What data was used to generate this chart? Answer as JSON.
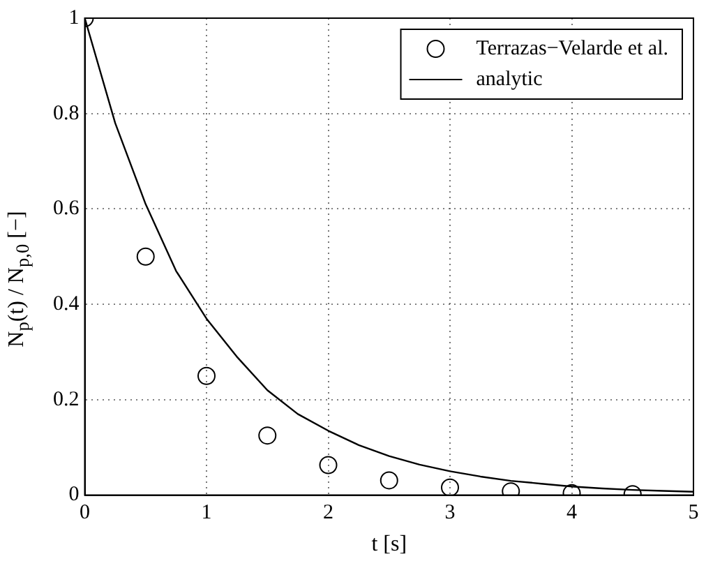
{
  "chart_data": {
    "type": "scatter",
    "xlabel": "t [s]",
    "ylabel": "N$_{p}$(t) / N$_{p,0}$ [−]",
    "xlim": [
      0,
      5
    ],
    "xticks": [
      0,
      1,
      2,
      3,
      4,
      5
    ],
    "ylim": [
      0,
      1
    ],
    "yticks": [
      0,
      0.2,
      0.4,
      0.6,
      0.8,
      1
    ],
    "grid": true,
    "legend": "top right",
    "marker": "circle",
    "series": [
      {
        "name": "Terrazas−Velarde et al.",
        "color": "#000000",
        "x": [
          0,
          0.5,
          1,
          1.5,
          2,
          2.5,
          3,
          3.5,
          4,
          4.5
        ],
        "values": [
          1,
          0.5,
          0.25,
          0.125,
          0.063,
          0.031,
          0.016,
          0.008,
          0.004,
          0.002
        ]
      },
      {
        "name": "analytic",
        "type": "line",
        "color": "#000000",
        "marker": "none",
        "line_style": "solid",
        "x": [
          0,
          0.25,
          0.5,
          0.75,
          1,
          1.25,
          1.5,
          1.75,
          2,
          2.25,
          2.5,
          2.75,
          3,
          3.25,
          3.5,
          3.75,
          4,
          4.25,
          4.5,
          4.75,
          5
        ],
        "values": [
          1,
          0.78,
          0.61,
          0.47,
          0.37,
          0.29,
          0.22,
          0.17,
          0.135,
          0.105,
          0.082,
          0.064,
          0.05,
          0.039,
          0.03,
          0.024,
          0.018,
          0.014,
          0.011,
          0.009,
          0.007
        ]
      }
    ]
  }
}
